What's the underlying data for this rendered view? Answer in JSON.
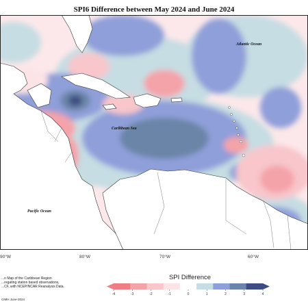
{
  "title": "SPI6 Difference between May 2024 and June 2024",
  "ocean_labels": {
    "atlantic": "Atlantic Ocean",
    "caribbean": "Caribbean Sea",
    "pacific": "Pacific Ocean"
  },
  "longitude_labels": [
    "90°W",
    "80°W",
    "70°W",
    "60°W"
  ],
  "caption": {
    "line1": "...n Map of the Caribbean Region",
    "line2": "...regating station based observations,",
    "line3": "...CF, with NCEP/NCAR Reanalysis Data."
  },
  "footer": "CIMH June-2024",
  "legend": {
    "title": "SPI Difference",
    "ticks": [
      "-4",
      "-3",
      "-2",
      "-1",
      "0",
      "1",
      "2",
      "3",
      "4"
    ],
    "colors": [
      "#ee7d85",
      "#f4a3a9",
      "#f8c6cb",
      "#fce4e6",
      "#ffffff",
      "#c6dde3",
      "#8f9fd9",
      "#6a85a7",
      "#3d4c82"
    ]
  }
}
